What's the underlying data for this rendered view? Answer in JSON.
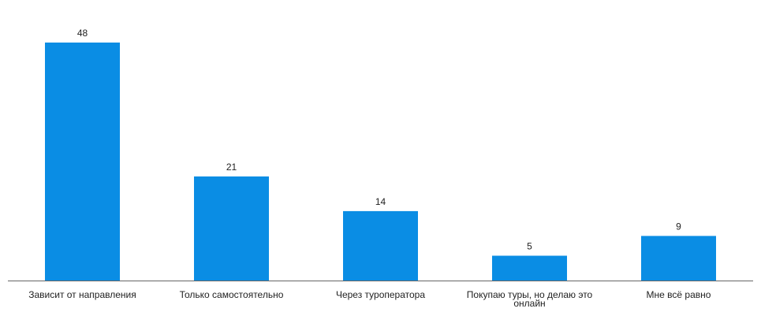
{
  "chart_data": {
    "type": "bar",
    "categories": [
      "Зависит от направления",
      "Только самостоятельно",
      "Через туроператора",
      "Покупаю туры, но делаю это онлайн",
      "Мне всё равно"
    ],
    "values": [
      48,
      21,
      14,
      5,
      9
    ],
    "category_label_lines": [
      [
        "Зависит от направления"
      ],
      [
        "Только самостоятельно"
      ],
      [
        "Через туроператора"
      ],
      [
        "Покупаю туры, но делаю это",
        "онлайн"
      ],
      [
        "Мне всё равно"
      ]
    ],
    "ylim": [
      0,
      48
    ],
    "bar_color": "#0a8de4",
    "grid": false,
    "legend": "none"
  }
}
